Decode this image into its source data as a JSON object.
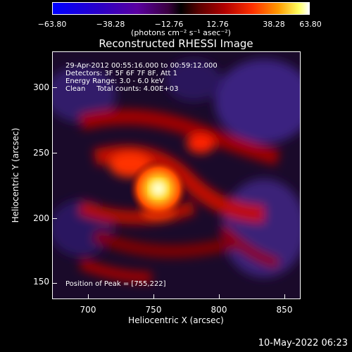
{
  "colorbar": {
    "ticks": [
      "−63.80",
      "−38.28",
      "−12.76",
      "12.76",
      "38.28",
      "63.80"
    ],
    "unit": "(photons cm⁻² s⁻¹ asec⁻²)"
  },
  "title": "Reconstructed RHESSI Image",
  "annotations": [
    "29-Apr-2012 00:55:16.000 to 00:59:12.000",
    "Detectors: 3F 5F 6F 7F 8F, Att 1",
    "Energy Range: 3.0 - 6.0 keV",
    "Clean     Total counts: 4.00E+03"
  ],
  "peak_text": "Position of Peak = [755,222]",
  "xaxis": {
    "label": "Heliocentric X (arcsec)",
    "ticks": [
      "700",
      "750",
      "800",
      "850"
    ]
  },
  "yaxis": {
    "label": "Heliocentric Y (arcsec)",
    "ticks": [
      "300",
      "250",
      "200",
      "150"
    ]
  },
  "datestamp": "10-May-2022 06:23",
  "colors": {
    "background": "#000000",
    "peak": "#ffff80",
    "bright": "#ff4000",
    "negative": "#3a1a6e"
  }
}
